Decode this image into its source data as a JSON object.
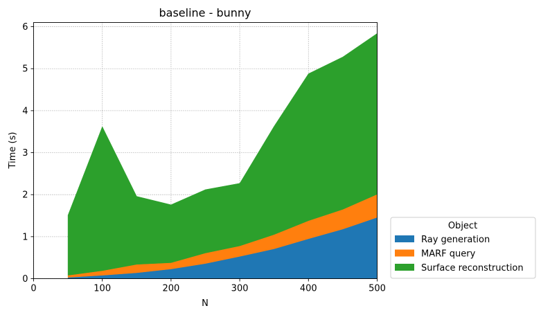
{
  "chart_data": {
    "type": "area",
    "stacked": true,
    "title": "baseline - bunny",
    "xlabel": "N",
    "ylabel": "Time (s)",
    "xlim": [
      0,
      500
    ],
    "ylim": [
      0,
      6.1
    ],
    "xticks": [
      0,
      100,
      200,
      300,
      400,
      500
    ],
    "yticks": [
      0,
      1,
      2,
      3,
      4,
      5,
      6
    ],
    "grid": true,
    "legend": {
      "title": "Object",
      "placement": "outside-lower-right"
    },
    "x": [
      50,
      100,
      150,
      200,
      250,
      300,
      350,
      400,
      450,
      500
    ],
    "series": [
      {
        "name": "Ray generation",
        "color": "#1f77b4",
        "values": [
          0.03,
          0.08,
          0.14,
          0.23,
          0.36,
          0.53,
          0.71,
          0.95,
          1.18,
          1.46
        ]
      },
      {
        "name": "MARF query",
        "color": "#ff7f0e",
        "values": [
          0.05,
          0.11,
          0.2,
          0.15,
          0.25,
          0.25,
          0.34,
          0.43,
          0.47,
          0.55
        ]
      },
      {
        "name": "Surface reconstruction",
        "color": "#2ca02c",
        "values": [
          1.43,
          3.43,
          1.62,
          1.38,
          1.51,
          1.49,
          2.58,
          3.5,
          3.63,
          3.83
        ]
      }
    ]
  }
}
